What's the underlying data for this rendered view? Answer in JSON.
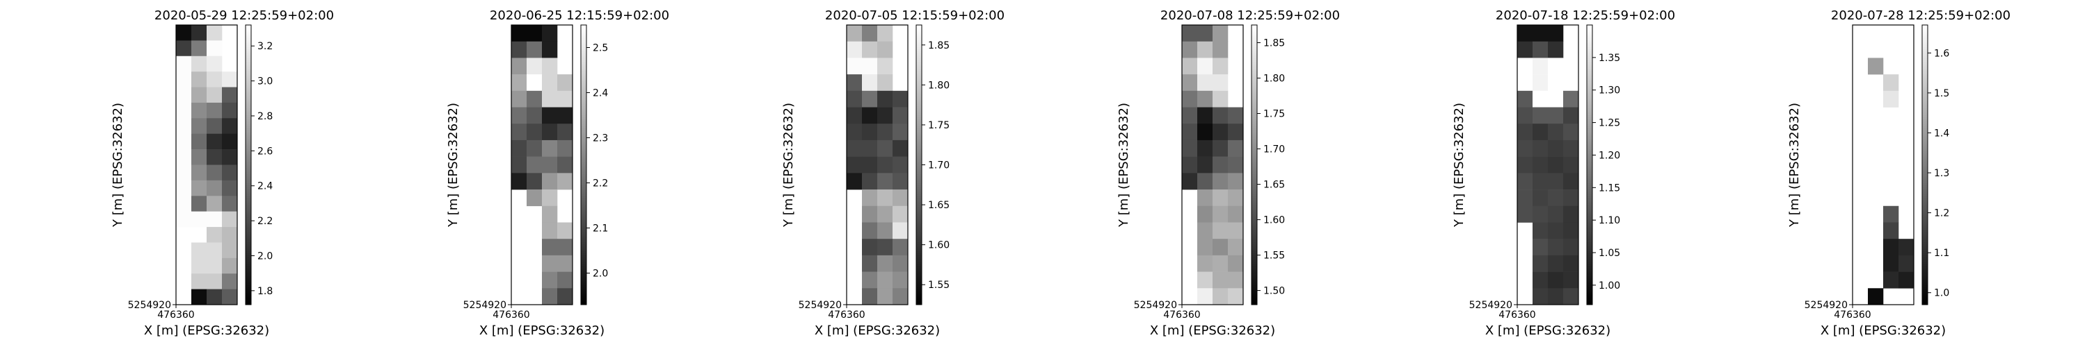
{
  "figure": {
    "xlabel": "X [m] (EPSG:32632)",
    "ylabel": "Y [m] (EPSG:32632)",
    "x_tick": "476360",
    "y_tick": "5254920"
  },
  "chart_data": [
    {
      "type": "heatmap",
      "title": "2020-05-29 12:25:59+02:00",
      "colormap": "gray",
      "colorbar_range": [
        1.72,
        3.32
      ],
      "colorbar_ticks": [
        1.8,
        2.0,
        2.2,
        2.4,
        2.6,
        2.8,
        3.0,
        3.2
      ],
      "grid": [
        [
          1.8,
          2.0,
          3.1,
          null
        ],
        [
          2.1,
          2.5,
          3.3,
          null
        ],
        [
          3.3,
          3.1,
          3.2,
          null
        ],
        [
          3.3,
          2.9,
          3.1,
          3.2
        ],
        [
          3.3,
          2.8,
          3.0,
          2.3
        ],
        [
          3.3,
          2.6,
          2.5,
          2.2
        ],
        [
          3.3,
          2.5,
          2.3,
          2.0
        ],
        [
          3.3,
          2.4,
          2.0,
          1.9
        ],
        [
          3.3,
          2.5,
          2.1,
          2.0
        ],
        [
          3.3,
          2.6,
          2.4,
          2.2
        ],
        [
          3.3,
          2.7,
          2.6,
          2.3
        ],
        [
          3.3,
          2.4,
          2.8,
          2.4
        ],
        [
          3.3,
          3.3,
          3.3,
          3.0
        ],
        [
          null,
          null,
          3.0,
          2.9
        ],
        [
          null,
          3.1,
          3.1,
          2.9
        ],
        [
          null,
          3.1,
          3.1,
          2.8
        ],
        [
          null,
          3.0,
          3.0,
          2.5
        ],
        [
          null,
          1.8,
          2.1,
          2.3
        ]
      ]
    },
    {
      "type": "heatmap",
      "title": "2020-06-25 12:15:59+02:00",
      "colormap": "gray",
      "colorbar_range": [
        1.93,
        2.55
      ],
      "colorbar_ticks": [
        2.0,
        2.1,
        2.2,
        2.3,
        2.4,
        2.5
      ],
      "grid": [
        [
          1.95,
          1.95,
          2.0,
          null
        ],
        [
          2.1,
          2.2,
          2.0,
          null
        ],
        [
          2.3,
          2.5,
          2.45,
          null
        ],
        [
          2.35,
          2.55,
          2.45,
          2.4
        ],
        [
          2.3,
          2.2,
          2.45,
          2.45
        ],
        [
          2.2,
          2.15,
          2.0,
          2.0
        ],
        [
          2.15,
          2.1,
          2.05,
          2.1
        ],
        [
          2.1,
          2.15,
          2.25,
          2.2
        ],
        [
          2.1,
          2.2,
          2.2,
          2.15
        ],
        [
          2.0,
          2.1,
          2.3,
          2.35
        ],
        [
          null,
          2.3,
          2.4,
          null
        ],
        [
          null,
          null,
          2.35,
          null
        ],
        [
          null,
          null,
          2.35,
          2.4
        ],
        [
          null,
          null,
          2.2,
          2.2
        ],
        [
          null,
          null,
          2.3,
          2.3
        ],
        [
          null,
          null,
          2.25,
          2.2
        ],
        [
          null,
          null,
          2.2,
          2.1
        ]
      ]
    },
    {
      "type": "heatmap",
      "title": "2020-07-05 12:15:59+02:00",
      "colormap": "gray",
      "colorbar_range": [
        1.525,
        1.875
      ],
      "colorbar_ticks": [
        1.55,
        1.6,
        1.65,
        1.7,
        1.75,
        1.8,
        1.85
      ],
      "grid": [
        [
          1.77,
          1.7,
          1.8,
          null
        ],
        [
          1.85,
          1.8,
          1.78,
          null
        ],
        [
          1.87,
          1.87,
          1.82,
          null
        ],
        [
          1.65,
          1.85,
          1.8,
          null
        ],
        [
          1.63,
          1.68,
          1.6,
          1.62
        ],
        [
          1.6,
          1.56,
          1.58,
          1.64
        ],
        [
          1.61,
          1.6,
          1.62,
          1.65
        ],
        [
          1.62,
          1.62,
          1.64,
          1.6
        ],
        [
          1.6,
          1.6,
          1.62,
          1.63
        ],
        [
          1.56,
          1.62,
          1.66,
          1.64
        ],
        [
          null,
          1.75,
          1.78,
          1.76
        ],
        [
          null,
          1.72,
          1.75,
          1.8
        ],
        [
          null,
          1.68,
          1.72,
          1.84
        ],
        [
          null,
          1.62,
          1.63,
          1.68
        ],
        [
          null,
          1.65,
          1.72,
          1.7
        ],
        [
          null,
          1.7,
          1.74,
          1.72
        ],
        [
          null,
          1.66,
          1.74,
          1.7
        ]
      ]
    },
    {
      "type": "heatmap",
      "title": "2020-07-08 12:25:59+02:00",
      "colormap": "gray",
      "colorbar_range": [
        1.48,
        1.875
      ],
      "colorbar_ticks": [
        1.5,
        1.55,
        1.6,
        1.65,
        1.7,
        1.75,
        1.8,
        1.85
      ],
      "grid": [
        [
          1.62,
          1.62,
          1.72,
          null
        ],
        [
          1.7,
          1.78,
          1.72,
          null
        ],
        [
          1.78,
          1.86,
          1.8,
          null
        ],
        [
          1.72,
          1.84,
          1.84,
          null
        ],
        [
          1.66,
          1.7,
          1.8,
          null
        ],
        [
          1.62,
          1.52,
          1.6,
          1.62
        ],
        [
          1.6,
          1.5,
          1.55,
          1.58
        ],
        [
          1.6,
          1.54,
          1.58,
          1.64
        ],
        [
          1.58,
          1.55,
          1.62,
          1.63
        ],
        [
          1.55,
          1.62,
          1.68,
          1.7
        ],
        [
          null,
          1.72,
          1.76,
          1.74
        ],
        [
          null,
          1.7,
          1.74,
          1.72
        ],
        [
          null,
          1.72,
          1.76,
          1.76
        ],
        [
          null,
          1.72,
          1.7,
          1.74
        ],
        [
          null,
          1.74,
          1.75,
          1.72
        ],
        [
          null,
          1.8,
          1.75,
          1.75
        ],
        [
          null,
          1.85,
          1.78,
          1.8
        ]
      ]
    },
    {
      "type": "heatmap",
      "title": "2020-07-18 12:25:59+02:00",
      "colormap": "gray",
      "colorbar_range": [
        0.97,
        1.4
      ],
      "colorbar_ticks": [
        1.0,
        1.05,
        1.1,
        1.15,
        1.2,
        1.25,
        1.3,
        1.35
      ],
      "grid": [
        [
          1.0,
          1.0,
          1.0,
          null
        ],
        [
          1.05,
          1.1,
          1.05,
          null
        ],
        [
          1.4,
          1.38,
          1.4,
          null
        ],
        [
          null,
          1.38,
          1.4,
          null
        ],
        [
          1.12,
          1.4,
          1.4,
          1.15
        ],
        [
          1.1,
          1.12,
          1.12,
          1.08
        ],
        [
          1.08,
          1.06,
          1.08,
          1.1
        ],
        [
          1.09,
          1.08,
          1.07,
          1.08
        ],
        [
          1.08,
          1.07,
          1.06,
          1.07
        ],
        [
          1.1,
          1.08,
          1.08,
          1.06
        ],
        [
          1.1,
          1.08,
          1.09,
          1.08
        ],
        [
          1.1,
          1.09,
          1.08,
          1.06
        ],
        [
          null,
          1.08,
          1.07,
          1.06
        ],
        [
          null,
          1.1,
          1.08,
          1.07
        ],
        [
          null,
          1.08,
          1.06,
          1.05
        ],
        [
          null,
          1.06,
          1.04,
          1.05
        ],
        [
          null,
          1.07,
          1.06,
          1.08
        ]
      ]
    },
    {
      "type": "heatmap",
      "title": "2020-07-28 12:25:59+02:00",
      "colormap": "gray",
      "colorbar_range": [
        0.97,
        1.67
      ],
      "colorbar_ticks": [
        1.0,
        1.1,
        1.2,
        1.3,
        1.4,
        1.5,
        1.6
      ],
      "grid": [
        [
          null,
          null,
          null,
          null
        ],
        [
          null,
          null,
          null,
          null
        ],
        [
          null,
          1.4,
          null,
          null
        ],
        [
          null,
          null,
          1.55,
          null
        ],
        [
          null,
          null,
          1.6,
          null
        ],
        [
          null,
          null,
          null,
          null
        ],
        [
          null,
          null,
          null,
          null
        ],
        [
          null,
          null,
          null,
          null
        ],
        [
          null,
          null,
          null,
          null
        ],
        [
          null,
          null,
          null,
          null
        ],
        [
          null,
          null,
          null,
          null
        ],
        [
          null,
          null,
          1.2,
          null
        ],
        [
          null,
          null,
          1.15,
          null
        ],
        [
          null,
          null,
          1.05,
          1.08
        ],
        [
          null,
          null,
          1.05,
          1.1
        ],
        [
          null,
          null,
          1.08,
          1.05
        ],
        [
          null,
          1.0,
          null,
          null
        ]
      ]
    }
  ]
}
